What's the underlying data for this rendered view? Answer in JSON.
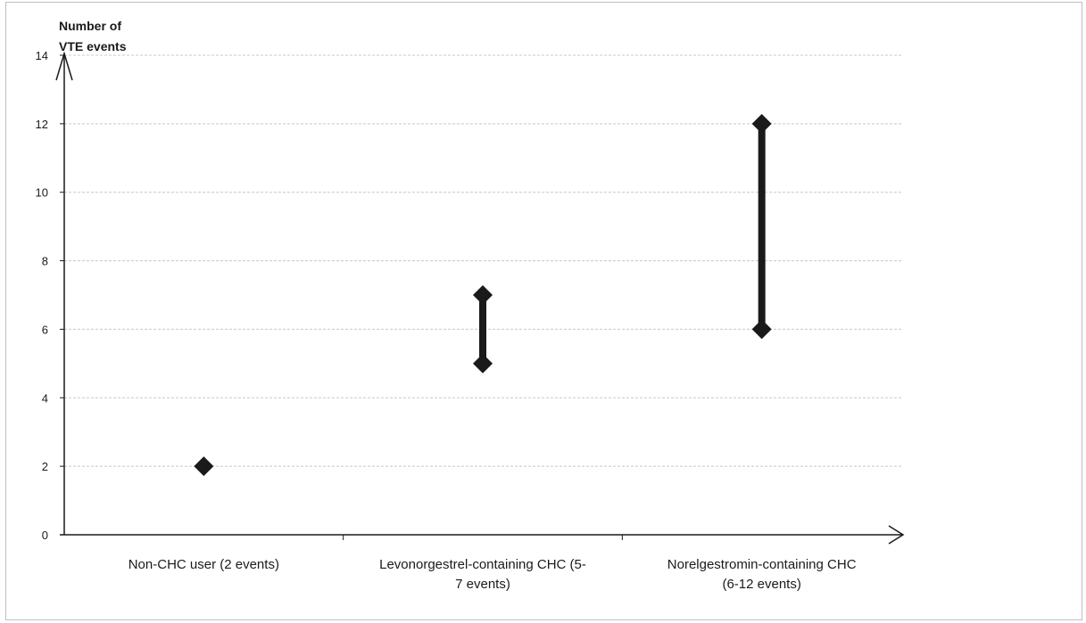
{
  "chart_data": {
    "type": "scatter",
    "ylabel_lines": [
      "Number of",
      "VTE events"
    ],
    "xlabel": "",
    "ylim": [
      0,
      14
    ],
    "yticks": [
      0,
      2,
      4,
      6,
      8,
      10,
      12,
      14
    ],
    "grid": true,
    "categories": [
      {
        "label_lines": [
          "Non-CHC user (2 events)"
        ],
        "min": 2,
        "max": 2
      },
      {
        "label_lines": [
          "Levonorgestrel-containing CHC (5-",
          "7 events)"
        ],
        "min": 5,
        "max": 7
      },
      {
        "label_lines": [
          "Norelgestromin-containing CHC",
          "(6-12 events)"
        ],
        "min": 6,
        "max": 12
      }
    ],
    "marker": "diamond",
    "color": "#1a1a1a",
    "grid_color": "#c8c8c8"
  }
}
